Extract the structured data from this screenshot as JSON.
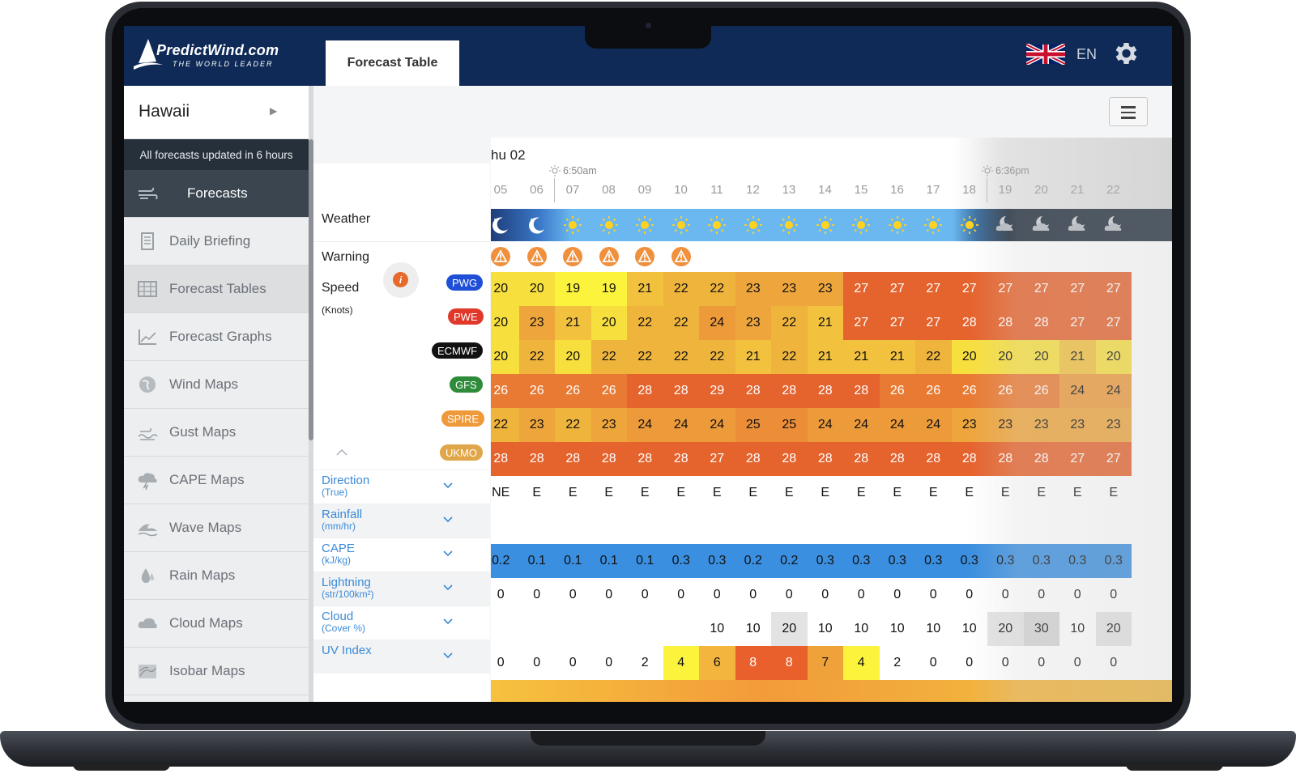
{
  "header": {
    "logo_title": "PredictWind.com",
    "logo_tagline": "THE WORLD LEADER",
    "active_tab": "Forecast Table",
    "language": "EN"
  },
  "sidebar": {
    "location": "Hawaii",
    "updated_text": "All forecasts updated in 6 hours",
    "items": [
      {
        "label": "Forecasts",
        "icon": "wind-icon"
      },
      {
        "label": "Daily Briefing",
        "icon": "document-icon"
      },
      {
        "label": "Forecast Tables",
        "icon": "table-icon"
      },
      {
        "label": "Forecast Graphs",
        "icon": "graph-icon"
      },
      {
        "label": "Wind Maps",
        "icon": "globe-icon"
      },
      {
        "label": "Gust Maps",
        "icon": "gust-icon"
      },
      {
        "label": "CAPE Maps",
        "icon": "storm-cloud-icon"
      },
      {
        "label": "Wave Maps",
        "icon": "wave-icon"
      },
      {
        "label": "Rain Maps",
        "icon": "raindrop-icon"
      },
      {
        "label": "Cloud Maps",
        "icon": "cloud-icon"
      },
      {
        "label": "Isobar Maps",
        "icon": "isobar-icon"
      }
    ]
  },
  "table": {
    "day_label": "hu 02",
    "sunrise": "6:50am",
    "sunset": "6:36pm",
    "hours": [
      "05",
      "06",
      "07",
      "08",
      "09",
      "10",
      "11",
      "12",
      "13",
      "14",
      "15",
      "16",
      "17",
      "18",
      "19",
      "20",
      "21",
      "22"
    ],
    "weather_label": "Weather",
    "warning_label": "Warning",
    "speed_label": "Speed",
    "speed_unit": "(Knots)",
    "weather": [
      "moon",
      "moon",
      "sun",
      "sun",
      "sun",
      "sun",
      "sun",
      "sun",
      "sun",
      "sun",
      "sun",
      "sun",
      "sun",
      "sun",
      "moon-cloud",
      "moon-cloud",
      "moon-cloud",
      "moon-cloud"
    ],
    "warnings": [
      true,
      true,
      true,
      true,
      true,
      true,
      false,
      false,
      false,
      false,
      false,
      false,
      false,
      false,
      false,
      false,
      false,
      false
    ],
    "models": [
      {
        "name": "PWG",
        "color": "#1f4fd6",
        "values": [
          20,
          20,
          19,
          19,
          21,
          22,
          22,
          23,
          23,
          23,
          27,
          27,
          27,
          27,
          27,
          27,
          27,
          27
        ]
      },
      {
        "name": "PWE",
        "color": "#e0392b",
        "values": [
          20,
          23,
          21,
          20,
          22,
          22,
          24,
          23,
          22,
          21,
          27,
          27,
          27,
          28,
          28,
          28,
          27,
          27
        ]
      },
      {
        "name": "ECMWF",
        "color": "#111111",
        "values": [
          20,
          22,
          20,
          22,
          22,
          22,
          22,
          21,
          22,
          21,
          21,
          21,
          22,
          20,
          20,
          20,
          21,
          20
        ]
      },
      {
        "name": "GFS",
        "color": "#2e8b3a",
        "values": [
          26,
          26,
          26,
          26,
          28,
          28,
          29,
          28,
          28,
          28,
          28,
          26,
          26,
          26,
          26,
          26,
          24,
          24
        ]
      },
      {
        "name": "SPIRE",
        "color": "#ef9a3a",
        "values": [
          22,
          23,
          22,
          23,
          24,
          24,
          24,
          25,
          25,
          24,
          24,
          24,
          24,
          23,
          23,
          23,
          23,
          23
        ]
      },
      {
        "name": "UKMO",
        "color": "#e0a64a",
        "values": [
          28,
          28,
          28,
          28,
          28,
          28,
          27,
          28,
          28,
          28,
          28,
          28,
          28,
          28,
          28,
          28,
          27,
          27
        ]
      }
    ],
    "direction": {
      "label": "Direction",
      "unit": "(True)",
      "values": [
        "NE",
        "E",
        "E",
        "E",
        "E",
        "E",
        "E",
        "E",
        "E",
        "E",
        "E",
        "E",
        "E",
        "E",
        "E",
        "E",
        "E",
        "E"
      ]
    },
    "rainfall": {
      "label": "Rainfall",
      "unit": "(mm/hr)"
    },
    "cape": {
      "label": "CAPE",
      "unit": "(kJ/kg)",
      "values": [
        "0.2",
        "0.1",
        "0.1",
        "0.1",
        "0.1",
        "0.3",
        "0.3",
        "0.2",
        "0.2",
        "0.3",
        "0.3",
        "0.3",
        "0.3",
        "0.3",
        "0.3",
        "0.3",
        "0.3",
        "0.3"
      ]
    },
    "lightning": {
      "label": "Lightning",
      "unit": "(str/100km²)",
      "values": [
        "0",
        "0",
        "0",
        "0",
        "0",
        "0",
        "0",
        "0",
        "0",
        "0",
        "0",
        "0",
        "0",
        "0",
        "0",
        "0",
        "0",
        "0"
      ]
    },
    "cloud": {
      "label": "Cloud",
      "unit": "(Cover %)",
      "values": [
        "",
        "",
        "",
        "",
        "",
        "",
        "10",
        "10",
        "20",
        "10",
        "10",
        "10",
        "10",
        "10",
        "20",
        "30",
        "10",
        "20"
      ]
    },
    "uv": {
      "label": "UV Index",
      "values": [
        "0",
        "0",
        "0",
        "0",
        "2",
        "4",
        "6",
        "8",
        "8",
        "7",
        "4",
        "2",
        "0",
        "0",
        "0",
        "0",
        "0",
        "0"
      ]
    }
  }
}
